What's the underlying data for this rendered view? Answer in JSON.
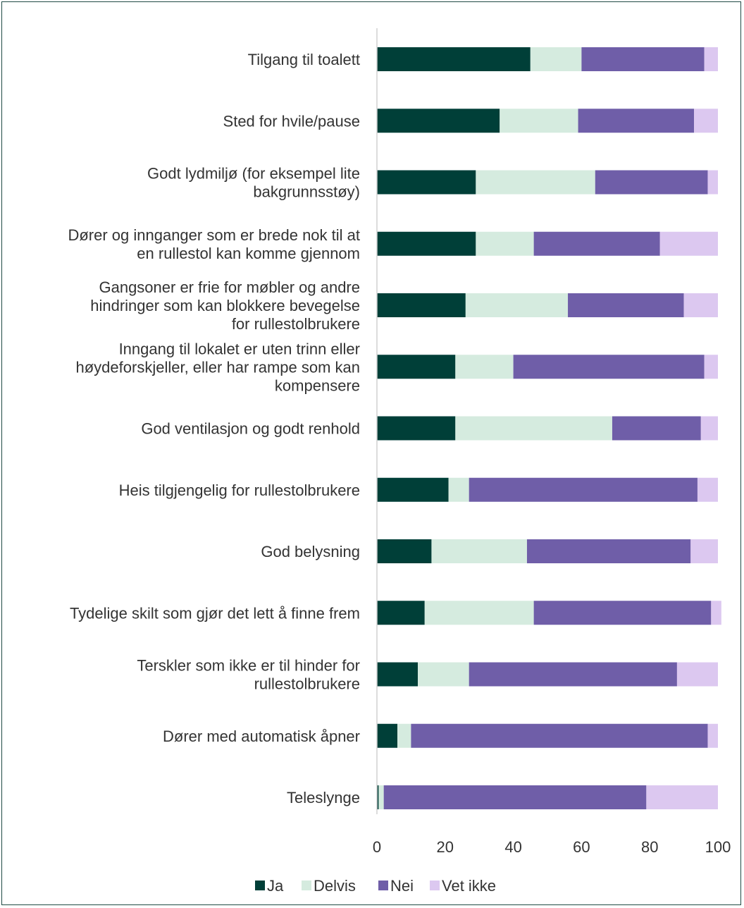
{
  "chart_data": {
    "type": "bar",
    "orientation": "horizontal",
    "stacked": true,
    "categories": [
      [
        "Tilgang til toalett"
      ],
      [
        "Sted for hvile/pause"
      ],
      [
        "Godt lydmiljø (for eksempel lite",
        "bakgrunnsstøy)"
      ],
      [
        "Dører og innganger som er brede nok til at",
        "en rullestol kan komme gjennom"
      ],
      [
        "Gangsoner er frie for møbler og andre",
        "hindringer som kan blokkere bevegelse",
        "for rullestolbrukere"
      ],
      [
        "Inngang til lokalet er uten trinn eller",
        "høydeforskjeller, eller har rampe som kan",
        "kompensere"
      ],
      [
        "God ventilasjon og godt renhold"
      ],
      [
        "Heis tilgjengelig for rullestolbrukere"
      ],
      [
        "God belysning"
      ],
      [
        "Tydelige skilt som gjør det lett å finne frem"
      ],
      [
        "Terskler som ikke er til hinder for",
        "rullestolbrukere"
      ],
      [
        "Dører med automatisk åpner"
      ],
      [
        "Teleslynge"
      ]
    ],
    "series": [
      {
        "name": "Ja",
        "color": "#003f38",
        "values": [
          45,
          36,
          29,
          29,
          26,
          23,
          23,
          21,
          16,
          14,
          12,
          6,
          0.5
        ]
      },
      {
        "name": "Delvis",
        "color": "#d5ebdf",
        "values": [
          15,
          23,
          35,
          17,
          30,
          17,
          46,
          6,
          28,
          32,
          15,
          4,
          1.5
        ]
      },
      {
        "name": "Nei",
        "color": "#6f5ea8",
        "values": [
          36,
          34,
          33,
          37,
          34,
          56,
          26,
          67,
          48,
          52,
          61,
          87,
          77
        ]
      },
      {
        "name": "Vet ikke",
        "color": "#dcc8f0",
        "values": [
          4,
          7,
          3,
          17,
          10,
          4,
          5,
          6,
          8,
          3,
          12,
          3,
          21
        ]
      }
    ],
    "xlim": [
      0,
      100
    ],
    "xticks": [
      "0",
      "20",
      "40",
      "60",
      "80",
      "100"
    ],
    "legend_position": "bottom",
    "grid": false
  }
}
